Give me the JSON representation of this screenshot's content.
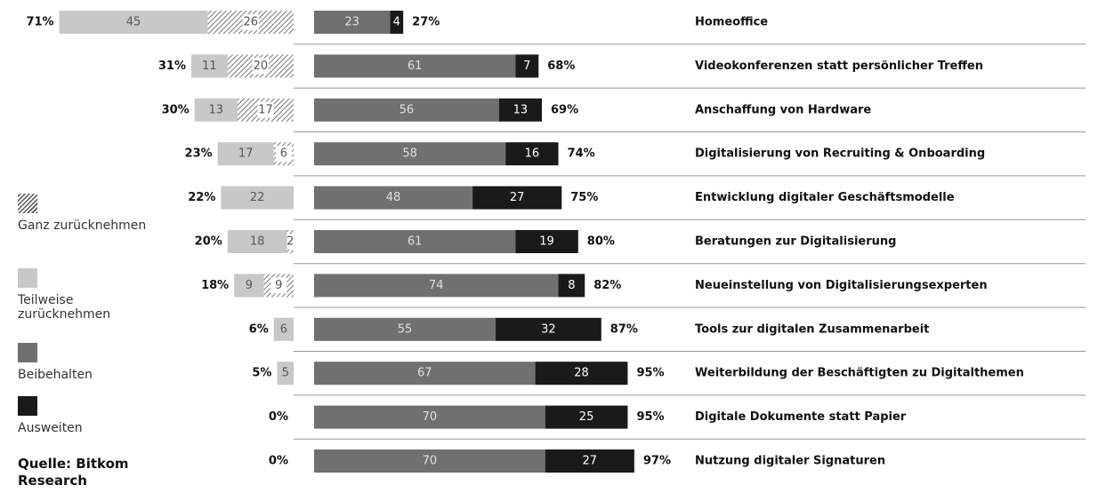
{
  "chart_data": {
    "type": "diverging-bar",
    "categories": [
      "Homeoffice",
      "Videokonferenzen statt persönlicher Treffen",
      "Anschaffung von Hardware",
      "Digitalisierung von Recruiting & Onboarding",
      "Entwicklung digitaler Geschäftsmodelle",
      "Beratungen zur Digitalisierung",
      "Neueinstellung von Digitalisierungsexperten",
      "Tools zur digitalen Zusammenarbeit",
      "Weiterbildung der Beschäftigten zu Digitalthemen",
      "Digitale Dokumente statt Papier",
      "Nutzung digitaler Signaturen"
    ],
    "series": [
      {
        "name": "Ganz zurücknehmen",
        "color": "#555555",
        "pattern": "hatch",
        "side": "left",
        "values": [
          26,
          20,
          17,
          6,
          null,
          2,
          9,
          null,
          null,
          null,
          null
        ]
      },
      {
        "name": "Teilweise zurücknehmen",
        "color": "#c8c8c8",
        "side": "left",
        "values": [
          45,
          11,
          13,
          17,
          22,
          18,
          9,
          6,
          5,
          null,
          null
        ]
      },
      {
        "name": "Beibehalten",
        "color": "#707070",
        "side": "right",
        "values": [
          23,
          61,
          56,
          58,
          48,
          61,
          74,
          55,
          67,
          70,
          70
        ]
      },
      {
        "name": "Ausweiten",
        "color": "#1a1a1a",
        "side": "right",
        "values": [
          4,
          7,
          13,
          16,
          27,
          19,
          8,
          32,
          28,
          25,
          27
        ]
      }
    ],
    "left_totals": {
      "values": [
        71,
        31,
        30,
        23,
        22,
        20,
        18,
        6,
        5,
        0,
        0
      ],
      "value_labels": [
        "71%",
        "31%",
        "30%",
        "23%",
        "22%",
        "20%",
        "18%",
        "6%",
        "5%",
        "0%",
        "0%"
      ]
    },
    "right_totals": {
      "values": [
        27,
        68,
        69,
        74,
        75,
        80,
        82,
        87,
        95,
        95,
        97
      ],
      "value_labels": [
        "27%",
        "68%",
        "69%",
        "74%",
        "75%",
        "80%",
        "82%",
        "87%",
        "95%",
        "95%",
        "97%"
      ]
    },
    "source": "Quelle: Bitkom Research"
  }
}
